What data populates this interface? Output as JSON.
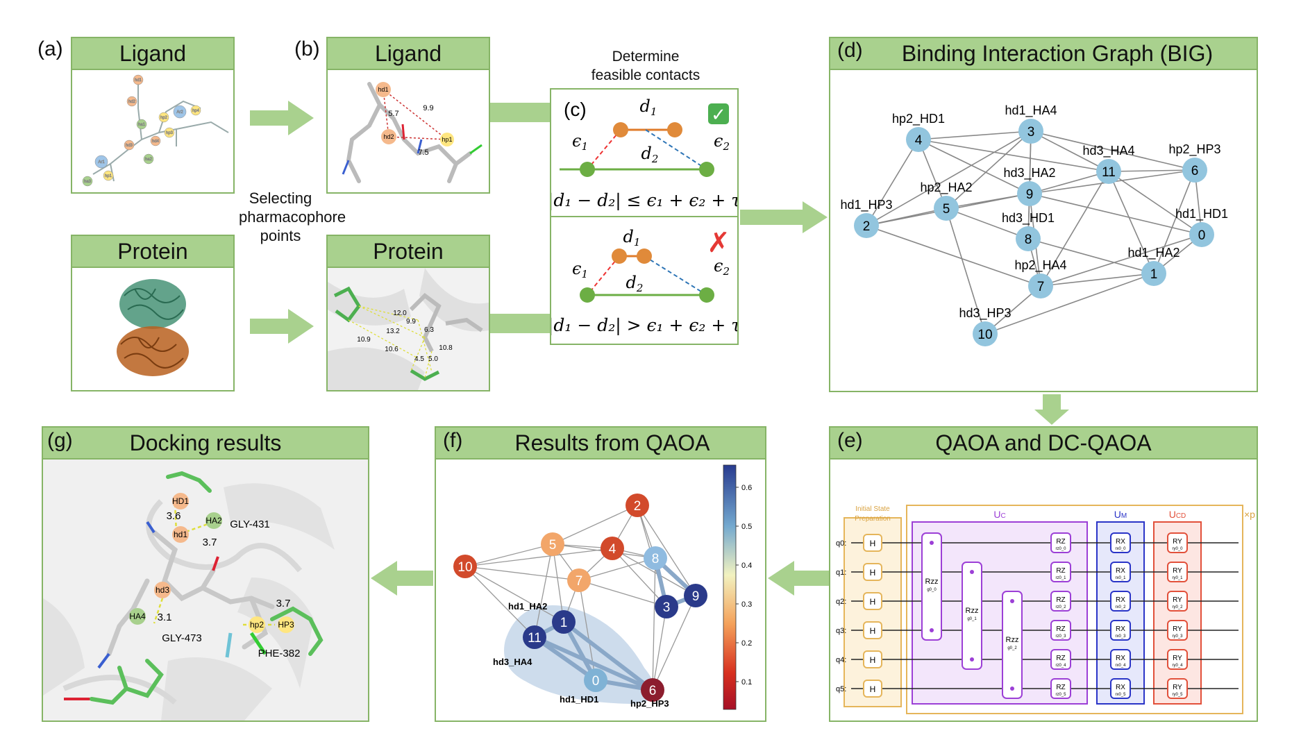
{
  "panel_a": {
    "tag": "(a)",
    "ligand_title": "Ligand",
    "protein_title": "Protein",
    "ligand_nodes": [
      "hd1",
      "hd2",
      "hd3",
      "ha1",
      "ha2",
      "ha3",
      "Ar1",
      "Ar2",
      "hp1",
      "hp2",
      "hp3",
      "hp4",
      "hd4"
    ]
  },
  "panel_b": {
    "tag": "(b)",
    "ligand_title": "Ligand",
    "protein_title": "Protein",
    "ligand_nodes": [
      "hd1",
      "hd2",
      "hp1"
    ],
    "ligand_distances": [
      "5.7",
      "9.9",
      "7.5"
    ],
    "protein_distances": [
      "12.0",
      "9.9",
      "10.9",
      "13.2",
      "10.6",
      "4.5",
      "6.3",
      "10.8",
      "5.0"
    ]
  },
  "selecting_label": "Selecting\npharmacophore\npoints",
  "panel_c": {
    "tag": "(c)",
    "caption": "Determine\nfeasible contacts",
    "d1": "d",
    "d1_sub": "1",
    "d2": "d",
    "d2_sub": "2",
    "e1": "ϵ",
    "e1_sub": "1",
    "e2": "ϵ",
    "e2_sub": "2",
    "ok_formula": "|d₁ − d₂| ≤ ϵ₁ + ϵ₂ + τ",
    "bad_formula": "|d₁ − d₂| > ϵ₁ + ϵ₂ + τ",
    "ok_mark": "✓",
    "bad_mark": "✗"
  },
  "panel_d": {
    "tag": "(d)",
    "title": "Binding Interaction Graph (BIG)",
    "nodes": [
      {
        "id": "0",
        "label": "hd1_HD1"
      },
      {
        "id": "1",
        "label": "hd1_HA2"
      },
      {
        "id": "2",
        "label": "hd1_HP3"
      },
      {
        "id": "3",
        "label": "hd1_HA4"
      },
      {
        "id": "4",
        "label": "hp2_HD1"
      },
      {
        "id": "5",
        "label": "hp2_HA2"
      },
      {
        "id": "6",
        "label": "hp2_HP3"
      },
      {
        "id": "7",
        "label": "hp2_HA4"
      },
      {
        "id": "8",
        "label": "hd3_HD1"
      },
      {
        "id": "9",
        "label": "hd3_HA2"
      },
      {
        "id": "10",
        "label": "hd3_HP3"
      },
      {
        "id": "11",
        "label": "hd3_HA4"
      }
    ]
  },
  "panel_e": {
    "tag": "(e)",
    "title": "QAOA and DC-QAOA",
    "init_label": "Initial State\nPreparation",
    "uc": "U",
    "uc_sub": "C",
    "um": "U",
    "um_sub": "M",
    "ucd": "U",
    "ucd_sub": "CD",
    "xp": "×p",
    "qubits": [
      "q0:",
      "q1:",
      "q2:",
      "q3:",
      "q4:",
      "q5:"
    ],
    "h_gate": "H",
    "rzz": "Rzz",
    "rzz_params": [
      "g0_0",
      "g0_1",
      "g0_2"
    ],
    "rz": "RZ",
    "rz_params": [
      "rz0_0",
      "rz0_1",
      "rz0_2",
      "rz0_3",
      "rz0_4",
      "rz0_5"
    ],
    "rx": "RX",
    "rx_params": [
      "rx0_0",
      "rx0_1",
      "rx0_2",
      "rx0_3",
      "rx0_4",
      "rx0_5"
    ],
    "ry": "RY",
    "ry_params": [
      "ry0_0",
      "ry0_1",
      "ry0_2",
      "ry0_3",
      "ry0_4",
      "ry0_5"
    ]
  },
  "panel_f": {
    "tag": "(f)",
    "title": "Results from QAOA",
    "nodes": [
      "0",
      "1",
      "2",
      "3",
      "4",
      "5",
      "6",
      "7",
      "8",
      "9",
      "10",
      "11"
    ],
    "labels": [
      "hd1_HA2",
      "hd3_HA4",
      "hd1_HD1",
      "hp2_HP3"
    ],
    "colorbar_ticks": [
      "0.6",
      "0.5",
      "0.4",
      "0.3",
      "0.2",
      "0.1"
    ],
    "colors": {
      "c0": "#7fb2d5",
      "c1": "#2a3a8a",
      "c2": "#d24a2b",
      "c3": "#2a3a8a",
      "c4": "#d24a2b",
      "c5": "#f2a66a",
      "c6": "#8c1d2e",
      "c7": "#f2a66a",
      "c8": "#8fbbe0",
      "c9": "#2a3a8a",
      "c10": "#d24a2b",
      "c11": "#2a3a8a"
    }
  },
  "panel_g": {
    "tag": "(g)",
    "title": "Docking results",
    "spheres": [
      "HD1",
      "HA2",
      "hd1",
      "hd3",
      "HA4",
      "hp2",
      "HP3"
    ],
    "distances": [
      "3.6",
      "3.7",
      "3.1",
      "3.7"
    ],
    "residues": [
      "GLY-431",
      "GLY-473",
      "PHE-382"
    ]
  }
}
